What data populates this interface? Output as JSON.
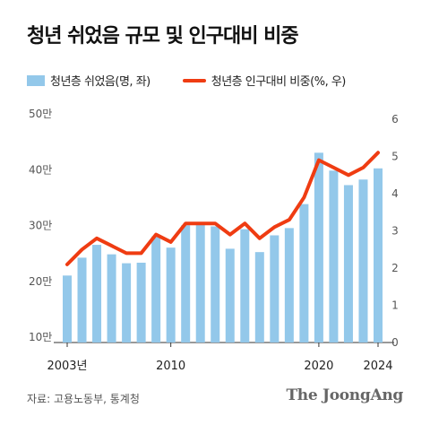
{
  "title": "청년 쉬었음 규모 및 인구대비 비중",
  "legend": {
    "bars": "청년층 쉬었음(명, 좌)",
    "line": "청년층 인구대비 비중(%, 우)"
  },
  "source": "자료: 고용노동부, 통계청",
  "brand": "The JoongAng",
  "colors": {
    "bar": "#93c8ea",
    "line": "#ef3c12",
    "text": "#555555"
  },
  "chart_data": {
    "type": "bar+line",
    "x": [
      2003,
      2004,
      2005,
      2006,
      2007,
      2008,
      2009,
      2010,
      2011,
      2012,
      2013,
      2014,
      2015,
      2016,
      2017,
      2018,
      2019,
      2020,
      2021,
      2022,
      2023,
      2024
    ],
    "x_tick_labels": [
      {
        "x": 2003,
        "label": "2003년"
      },
      {
        "x": 2010,
        "label": "2010"
      },
      {
        "x": 2020,
        "label": "2020"
      },
      {
        "x": 2024,
        "label": "2024"
      }
    ],
    "series": [
      {
        "name": "청년층 쉬었음(명, 좌)",
        "kind": "bar",
        "axis": "left",
        "values": [
          220000,
          252000,
          275000,
          258000,
          242000,
          243000,
          290000,
          270000,
          310000,
          311000,
          308000,
          268000,
          303000,
          262000,
          292000,
          305000,
          348000,
          440000,
          408000,
          382000,
          392000,
          412000
        ]
      },
      {
        "name": "청년층 인구대비 비중(%, 우)",
        "kind": "line",
        "axis": "right",
        "values": [
          2.1,
          2.5,
          2.8,
          2.6,
          2.4,
          2.4,
          2.9,
          2.7,
          3.2,
          3.2,
          3.2,
          2.9,
          3.2,
          2.8,
          3.1,
          3.3,
          3.9,
          4.9,
          4.7,
          4.5,
          4.7,
          5.1
        ]
      }
    ],
    "left_axis": {
      "ylim": [
        100000,
        500000
      ],
      "ticks": [
        100000,
        200000,
        300000,
        400000,
        500000
      ],
      "tick_labels": [
        "10만",
        "20만",
        "30만",
        "40만",
        "50만"
      ]
    },
    "right_axis": {
      "ylim": [
        0,
        6
      ],
      "ticks": [
        0,
        1,
        2,
        3,
        4,
        5,
        6
      ],
      "tick_labels": [
        "0",
        "1",
        "2",
        "3",
        "4",
        "5",
        "6"
      ]
    },
    "grid": false,
    "legend_placement": "top-left"
  }
}
